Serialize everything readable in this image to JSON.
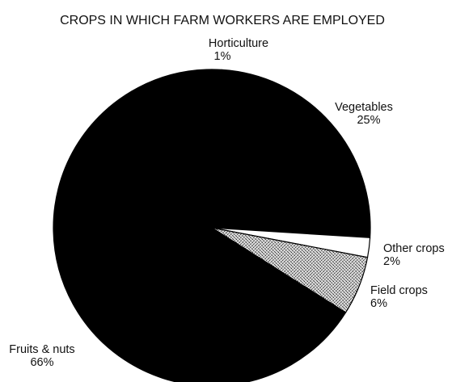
{
  "chart_data": {
    "type": "pie",
    "title": "CROPS IN WHICH FARM WORKERS ARE EMPLOYED",
    "slices": [
      {
        "label": "Horticulture",
        "value": 1,
        "value_label": "1%",
        "fill": "black"
      },
      {
        "label": "Vegetables",
        "value": 25,
        "value_label": "25%",
        "fill": "black"
      },
      {
        "label": "Other crops",
        "value": 2,
        "value_label": "2%",
        "fill": "white"
      },
      {
        "label": "Field crops",
        "value": 6,
        "value_label": "6%",
        "fill": "stipple"
      },
      {
        "label": "Fruits & nuts",
        "value": 66,
        "value_label": "66%",
        "fill": "black"
      }
    ]
  }
}
